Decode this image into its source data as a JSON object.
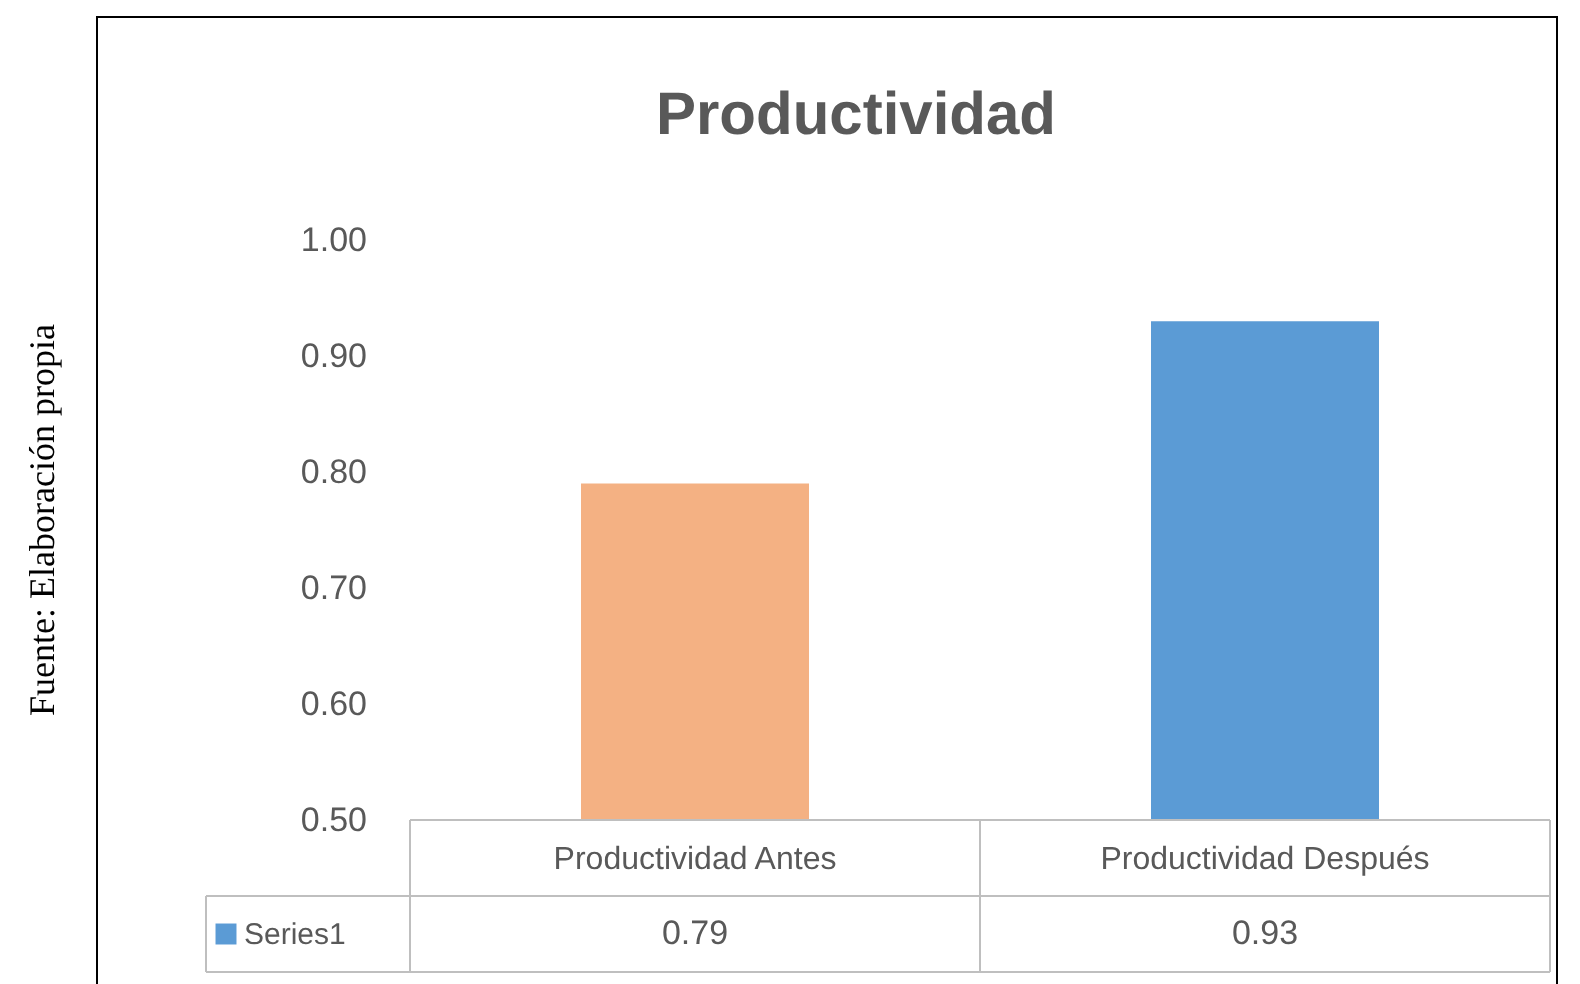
{
  "chart_data": {
    "type": "bar",
    "title": "Productividad",
    "categories": [
      "Productividad Antes",
      "Productividad Después"
    ],
    "series": [
      {
        "name": "Series1",
        "values": [
          0.79,
          0.93
        ]
      }
    ],
    "colors": [
      "#f4b183",
      "#5b9bd5"
    ],
    "ylim": [
      0.5,
      1.0
    ],
    "yticks": [
      {
        "value": 0.5,
        "label": "0.50"
      },
      {
        "value": 0.6,
        "label": "0.60"
      },
      {
        "value": 0.7,
        "label": "0.70"
      },
      {
        "value": 0.8,
        "label": "0.80"
      },
      {
        "value": 0.9,
        "label": "0.90"
      },
      {
        "value": 1.0,
        "label": "1.00"
      }
    ],
    "grid": false,
    "legend": "bottom",
    "data_labels": true,
    "annotations": [
      "Fuente: Elaboración propia"
    ]
  }
}
